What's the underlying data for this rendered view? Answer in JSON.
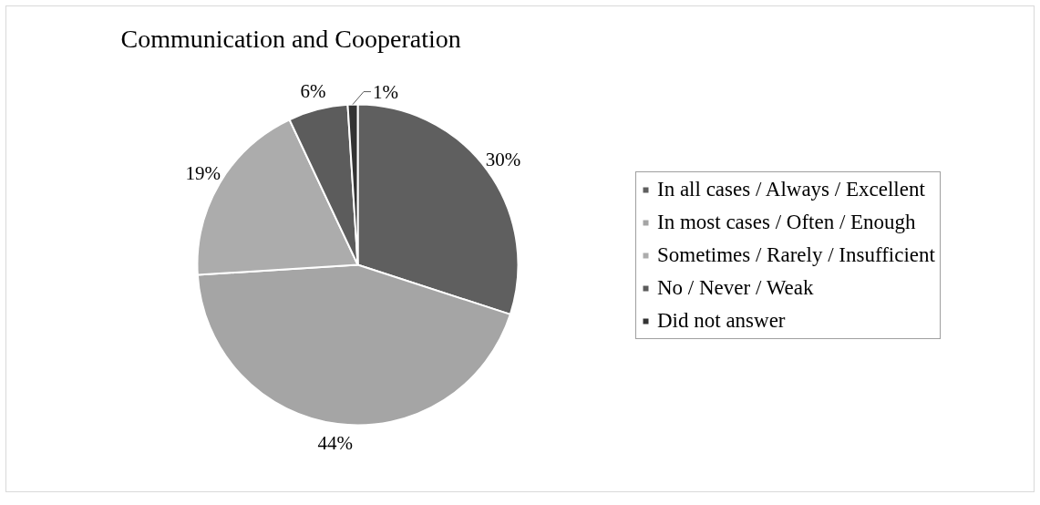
{
  "chart_data": {
    "type": "pie",
    "title": "Communication and Cooperation",
    "categories": [
      "In all cases / Always / Excellent",
      "In most cases / Often / Enough",
      "Sometimes / Rarely / Insufficient",
      "No / Never / Weak",
      "Did not answer"
    ],
    "values": [
      30,
      44,
      19,
      6,
      1
    ],
    "colors": [
      "#5f5f5f",
      "#a5a5a5",
      "#acacac",
      "#5c5c5c",
      "#333333"
    ],
    "value_labels": [
      "30%",
      "44%",
      "19%",
      "6%",
      "1%"
    ],
    "legend": "right"
  }
}
